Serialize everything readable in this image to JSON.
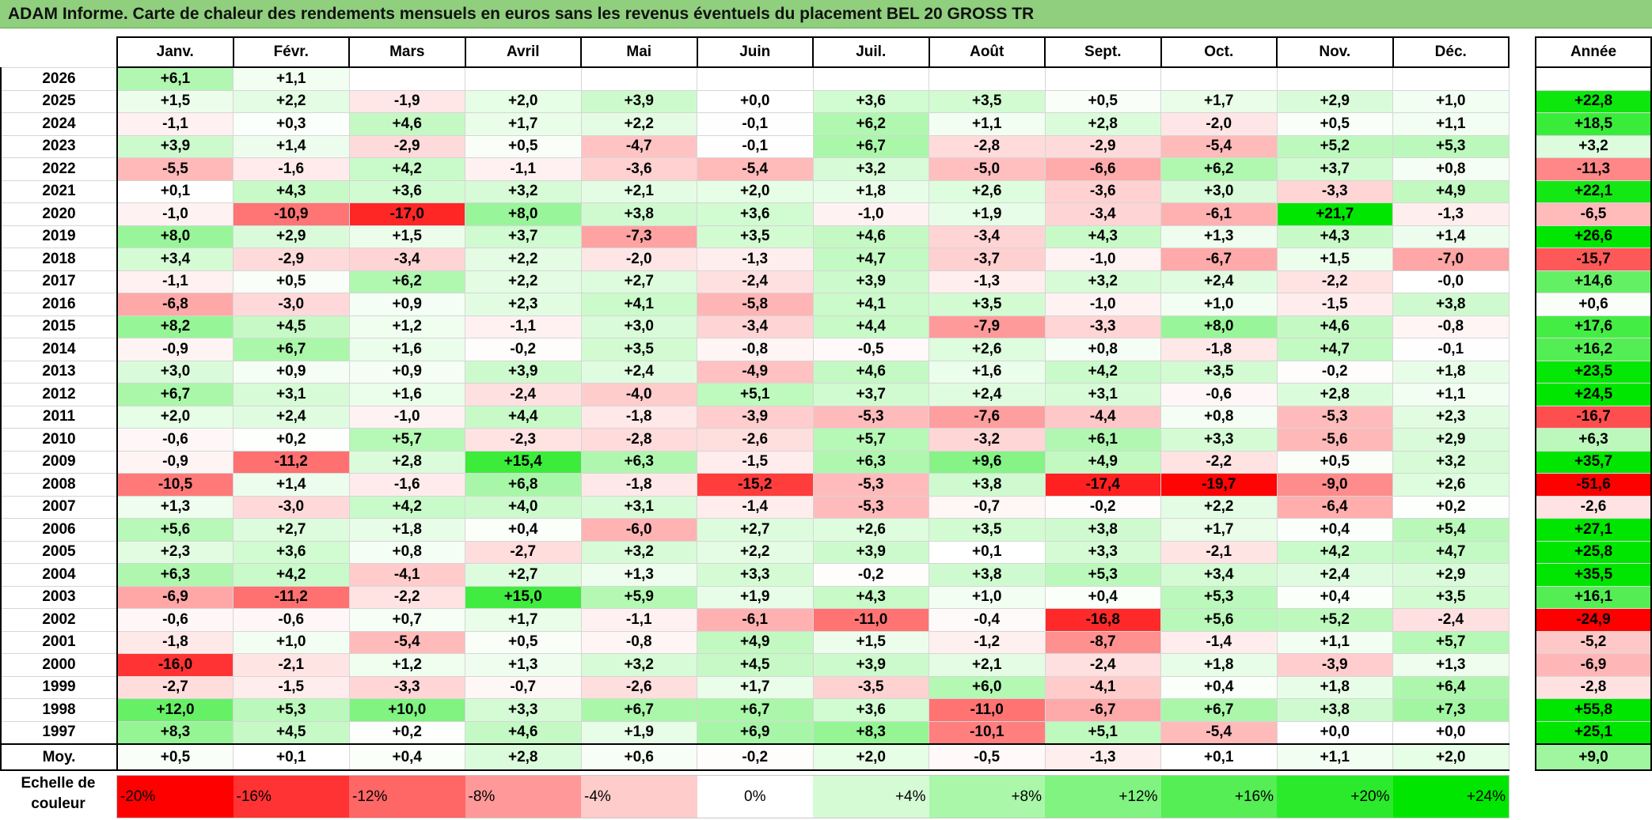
{
  "title": "ADAM Informe. Carte de chaleur des rendements mensuels en euros sans les revenus éventuels du placement BEL 20 GROSS TR",
  "chart_data": {
    "type": "heatmap",
    "title": "ADAM Informe. Carte de chaleur des rendements mensuels en euros sans les revenus éventuels du placement BEL 20 GROSS TR",
    "columns": [
      "Janv.",
      "Févr.",
      "Mars",
      "Avril",
      "Mai",
      "Juin",
      "Juil.",
      "Août",
      "Sept.",
      "Oct.",
      "Nov.",
      "Déc."
    ],
    "year_column_label": "Année",
    "rows": [
      {
        "year": "2026",
        "months": [
          "+6,1",
          "+1,1",
          "",
          "",
          "",
          "",
          "",
          "",
          "",
          "",
          "",
          ""
        ],
        "annual": ""
      },
      {
        "year": "2025",
        "months": [
          "+1,5",
          "+2,2",
          "-1,9",
          "+2,0",
          "+3,9",
          "+0,0",
          "+3,6",
          "+3,5",
          "+0,5",
          "+1,7",
          "+2,9",
          "+1,0"
        ],
        "annual": "+22,8"
      },
      {
        "year": "2024",
        "months": [
          "-1,1",
          "+0,3",
          "+4,6",
          "+1,7",
          "+2,2",
          "-0,1",
          "+6,2",
          "+1,1",
          "+2,8",
          "-2,0",
          "+0,5",
          "+1,1"
        ],
        "annual": "+18,5"
      },
      {
        "year": "2023",
        "months": [
          "+3,9",
          "+1,4",
          "-2,9",
          "+0,5",
          "-4,7",
          "-0,1",
          "+6,7",
          "-2,8",
          "-2,9",
          "-5,4",
          "+5,2",
          "+5,3"
        ],
        "annual": "+3,2"
      },
      {
        "year": "2022",
        "months": [
          "-5,5",
          "-1,6",
          "+4,2",
          "-1,1",
          "-3,6",
          "-5,4",
          "+3,2",
          "-5,0",
          "-6,6",
          "+6,2",
          "+3,7",
          "+0,8"
        ],
        "annual": "-11,3"
      },
      {
        "year": "2021",
        "months": [
          "+0,1",
          "+4,3",
          "+3,6",
          "+3,2",
          "+2,1",
          "+2,0",
          "+1,8",
          "+2,6",
          "-3,6",
          "+3,0",
          "-3,3",
          "+4,9"
        ],
        "annual": "+22,1"
      },
      {
        "year": "2020",
        "months": [
          "-1,0",
          "-10,9",
          "-17,0",
          "+8,0",
          "+3,8",
          "+3,6",
          "-1,0",
          "+1,9",
          "-3,4",
          "-6,1",
          "+21,7",
          "-1,3"
        ],
        "annual": "-6,5"
      },
      {
        "year": "2019",
        "months": [
          "+8,0",
          "+2,9",
          "+1,5",
          "+3,7",
          "-7,3",
          "+3,5",
          "+4,6",
          "-3,4",
          "+4,3",
          "+1,3",
          "+4,3",
          "+1,4"
        ],
        "annual": "+26,6"
      },
      {
        "year": "2018",
        "months": [
          "+3,4",
          "-2,9",
          "-3,4",
          "+2,2",
          "-2,0",
          "-1,3",
          "+4,7",
          "-3,7",
          "-1,0",
          "-6,7",
          "+1,5",
          "-7,0"
        ],
        "annual": "-15,7"
      },
      {
        "year": "2017",
        "months": [
          "-1,1",
          "+0,5",
          "+6,2",
          "+2,2",
          "+2,7",
          "-2,4",
          "+3,9",
          "-1,3",
          "+3,2",
          "+2,4",
          "-2,2",
          "-0,0"
        ],
        "annual": "+14,6"
      },
      {
        "year": "2016",
        "months": [
          "-6,8",
          "-3,0",
          "+0,9",
          "+2,3",
          "+4,1",
          "-5,8",
          "+4,1",
          "+3,5",
          "-1,0",
          "+1,0",
          "-1,5",
          "+3,8"
        ],
        "annual": "+0,6"
      },
      {
        "year": "2015",
        "months": [
          "+8,2",
          "+4,5",
          "+1,2",
          "-1,1",
          "+3,0",
          "-3,4",
          "+4,4",
          "-7,9",
          "-3,3",
          "+8,0",
          "+4,6",
          "-0,8"
        ],
        "annual": "+17,6"
      },
      {
        "year": "2014",
        "months": [
          "-0,9",
          "+6,7",
          "+1,6",
          "-0,2",
          "+3,5",
          "-0,8",
          "-0,5",
          "+2,6",
          "+0,8",
          "-1,8",
          "+4,7",
          "-0,1"
        ],
        "annual": "+16,2"
      },
      {
        "year": "2013",
        "months": [
          "+3,0",
          "+0,9",
          "+0,9",
          "+3,9",
          "+2,4",
          "-4,9",
          "+4,6",
          "+1,6",
          "+4,2",
          "+3,5",
          "-0,2",
          "+1,8"
        ],
        "annual": "+23,5"
      },
      {
        "year": "2012",
        "months": [
          "+6,7",
          "+3,1",
          "+1,6",
          "-2,4",
          "-4,0",
          "+5,1",
          "+3,7",
          "+2,4",
          "+3,1",
          "-0,6",
          "+2,8",
          "+1,1"
        ],
        "annual": "+24,5"
      },
      {
        "year": "2011",
        "months": [
          "+2,0",
          "+2,4",
          "-1,0",
          "+4,4",
          "-1,8",
          "-3,9",
          "-5,3",
          "-7,6",
          "-4,4",
          "+0,8",
          "-5,3",
          "+2,3"
        ],
        "annual": "-16,7"
      },
      {
        "year": "2010",
        "months": [
          "-0,6",
          "+0,2",
          "+5,7",
          "-2,3",
          "-2,8",
          "-2,6",
          "+5,7",
          "-3,2",
          "+6,1",
          "+3,3",
          "-5,6",
          "+2,9"
        ],
        "annual": "+6,3"
      },
      {
        "year": "2009",
        "months": [
          "-0,9",
          "-11,2",
          "+2,8",
          "+15,4",
          "+6,3",
          "-1,5",
          "+6,3",
          "+9,6",
          "+4,9",
          "-2,2",
          "+0,5",
          "+3,2"
        ],
        "annual": "+35,7"
      },
      {
        "year": "2008",
        "months": [
          "-10,5",
          "+1,4",
          "-1,6",
          "+6,8",
          "-1,8",
          "-15,2",
          "-5,3",
          "+3,8",
          "-17,4",
          "-19,7",
          "-9,0",
          "+2,6"
        ],
        "annual": "-51,6"
      },
      {
        "year": "2007",
        "months": [
          "+1,3",
          "-3,0",
          "+4,2",
          "+4,0",
          "+3,1",
          "-1,4",
          "-5,3",
          "-0,7",
          "-0,2",
          "+2,2",
          "-6,4",
          "+0,2"
        ],
        "annual": "-2,6"
      },
      {
        "year": "2006",
        "months": [
          "+5,6",
          "+2,7",
          "+1,8",
          "+0,4",
          "-6,0",
          "+2,7",
          "+2,6",
          "+3,5",
          "+3,8",
          "+1,7",
          "+0,4",
          "+5,4"
        ],
        "annual": "+27,1"
      },
      {
        "year": "2005",
        "months": [
          "+2,3",
          "+3,6",
          "+0,8",
          "-2,7",
          "+3,2",
          "+2,2",
          "+3,9",
          "+0,1",
          "+3,3",
          "-2,1",
          "+4,2",
          "+4,7"
        ],
        "annual": "+25,8"
      },
      {
        "year": "2004",
        "months": [
          "+6,3",
          "+4,2",
          "-4,1",
          "+2,7",
          "+1,3",
          "+3,3",
          "-0,2",
          "+3,8",
          "+5,3",
          "+3,4",
          "+2,4",
          "+2,9"
        ],
        "annual": "+35,5"
      },
      {
        "year": "2003",
        "months": [
          "-6,9",
          "-11,2",
          "-2,2",
          "+15,0",
          "+5,9",
          "+1,9",
          "+4,3",
          "+1,0",
          "+0,4",
          "+5,3",
          "+0,4",
          "+3,5"
        ],
        "annual": "+16,1"
      },
      {
        "year": "2002",
        "months": [
          "-0,6",
          "-0,6",
          "+0,7",
          "+1,7",
          "-1,1",
          "-6,1",
          "-11,0",
          "-0,4",
          "-16,8",
          "+5,6",
          "+5,2",
          "-2,4"
        ],
        "annual": "-24,9"
      },
      {
        "year": "2001",
        "months": [
          "-1,8",
          "+1,0",
          "-5,4",
          "+0,5",
          "-0,8",
          "+4,9",
          "+1,5",
          "-1,2",
          "-8,7",
          "-1,4",
          "+1,1",
          "+5,7"
        ],
        "annual": "-5,2"
      },
      {
        "year": "2000",
        "months": [
          "-16,0",
          "-2,1",
          "+1,2",
          "+1,3",
          "+3,2",
          "+4,5",
          "+3,9",
          "+2,1",
          "-2,4",
          "+1,8",
          "-3,9",
          "+1,3"
        ],
        "annual": "-6,9"
      },
      {
        "year": "1999",
        "months": [
          "-2,7",
          "-1,5",
          "-3,3",
          "-0,7",
          "-2,6",
          "+1,7",
          "-3,5",
          "+6,0",
          "-4,1",
          "+0,4",
          "+1,8",
          "+6,4"
        ],
        "annual": "-2,8"
      },
      {
        "year": "1998",
        "months": [
          "+12,0",
          "+5,3",
          "+10,0",
          "+3,3",
          "+6,7",
          "+6,7",
          "+3,6",
          "-11,0",
          "-6,7",
          "+6,7",
          "+3,8",
          "+7,3"
        ],
        "annual": "+55,8"
      },
      {
        "year": "1997",
        "months": [
          "+8,3",
          "+4,5",
          "+0,2",
          "+4,6",
          "+1,9",
          "+6,9",
          "+8,3",
          "-10,1",
          "+5,1",
          "-5,4",
          "+0,0",
          "+0,0"
        ],
        "annual": "+25,1"
      }
    ],
    "average": {
      "label": "Moy.",
      "months": [
        "+0,5",
        "+0,1",
        "+0,4",
        "+2,8",
        "+0,6",
        "-0,2",
        "+2,0",
        "-0,5",
        "-1,3",
        "+0,1",
        "+1,1",
        "+2,0"
      ],
      "annual": "+9,0"
    },
    "color_scale": {
      "label": "Echelle de couleur",
      "stops": [
        "-20%",
        "-16%",
        "-12%",
        "-8%",
        "-4%",
        "0%",
        "+4%",
        "+8%",
        "+12%",
        "+16%",
        "+20%",
        "+24%"
      ],
      "negative_color": "#ff0000",
      "neutral_color": "#ffffff",
      "positive_color": "#00e000"
    }
  }
}
